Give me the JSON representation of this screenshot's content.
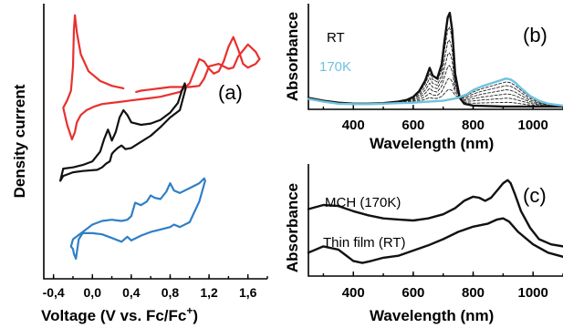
{
  "colors": {
    "red": "#e8312f",
    "black": "#111111",
    "blue": "#2f7fc6",
    "cyan": "#6fc3df"
  },
  "chart_data": [
    {
      "panel": "(a)",
      "type": "line",
      "xlabel": "Voltage (V vs. Fc/Fc",
      "xlabel_sup": "+",
      "ylabel": "Density current",
      "xlim": [
        -0.5,
        1.8
      ],
      "xticks": [
        "-0,4",
        "0,0",
        "0,4",
        "0,8",
        "1,2",
        "1,6"
      ],
      "xtick_values": [
        -0.4,
        0.0,
        0.4,
        0.8,
        1.2,
        1.6
      ],
      "y_units": "arbitrary",
      "series": [
        {
          "color": "red",
          "x": [
            0.32,
            0.2,
            0.08,
            -0.04,
            -0.12,
            -0.16,
            -0.18,
            -0.19,
            -0.2,
            -0.22,
            -0.26,
            -0.3,
            -0.26,
            -0.21,
            -0.18,
            -0.16,
            -0.12,
            -0.06,
            0.02,
            0.1,
            0.2,
            0.3,
            0.4,
            0.5,
            0.6,
            0.7,
            0.8,
            0.9,
            1.0,
            1.05,
            1.1,
            1.15,
            1.2,
            1.25,
            1.3,
            1.35,
            1.4,
            1.45,
            1.5,
            1.55,
            1.6,
            1.68,
            1.72,
            1.68,
            1.6,
            1.5,
            1.45,
            1.4,
            1.3,
            1.2,
            1.15,
            1.1,
            1.0,
            0.9,
            0.8,
            0.7,
            0.6,
            0.5,
            0.45
          ],
          "y": [
            10.2,
            10.4,
            10.8,
            11.6,
            13.0,
            14.8,
            16.2,
            15.0,
            12.0,
            10.0,
            9.2,
            8.6,
            7.2,
            6.0,
            6.6,
            7.4,
            8.0,
            8.4,
            8.7,
            8.9,
            9.0,
            9.1,
            9.2,
            9.3,
            9.4,
            9.5,
            9.7,
            9.9,
            10.6,
            11.6,
            12.6,
            12.4,
            11.8,
            11.4,
            11.6,
            12.4,
            13.6,
            14.4,
            13.4,
            12.2,
            11.9,
            12.2,
            12.6,
            13.2,
            13.8,
            12.8,
            11.9,
            11.8,
            12.2,
            12.0,
            11.0,
            10.4,
            10.3,
            10.3,
            10.3,
            10.2,
            10.1,
            10.0,
            9.9
          ]
        },
        {
          "color": "black",
          "x": [
            -0.3,
            -0.2,
            -0.1,
            0.0,
            0.08,
            0.12,
            0.16,
            0.18,
            0.2,
            0.24,
            0.28,
            0.32,
            0.36,
            0.4,
            0.5,
            0.6,
            0.7,
            0.8,
            0.88,
            0.92,
            0.95,
            0.96,
            0.9,
            0.8,
            0.7,
            0.6,
            0.5,
            0.4,
            0.34,
            0.3,
            0.26,
            0.22,
            0.2,
            0.18,
            0.14,
            0.1,
            0.05,
            -0.1,
            -0.2,
            -0.3,
            -0.33,
            -0.3
          ],
          "y": [
            3.6,
            3.7,
            3.9,
            4.2,
            5.0,
            6.0,
            6.8,
            6.4,
            5.9,
            6.6,
            7.8,
            8.4,
            8.0,
            7.4,
            7.2,
            7.3,
            7.6,
            8.2,
            9.0,
            10.0,
            10.6,
            10.2,
            8.4,
            7.8,
            7.0,
            6.3,
            5.8,
            5.3,
            5.2,
            5.5,
            5.3,
            5.0,
            4.8,
            4.2,
            4.0,
            3.7,
            3.5,
            3.4,
            3.3,
            3.0,
            2.6,
            3.6
          ]
        },
        {
          "color": "blue",
          "x": [
            -0.22,
            -0.2,
            -0.1,
            0.0,
            0.1,
            0.2,
            0.3,
            0.36,
            0.4,
            0.44,
            0.5,
            0.56,
            0.6,
            0.64,
            0.7,
            0.76,
            0.8,
            0.84,
            0.9,
            1.0,
            1.1,
            1.15,
            1.16,
            1.1,
            1.0,
            0.9,
            0.84,
            0.8,
            0.7,
            0.6,
            0.5,
            0.4,
            0.36,
            0.3,
            0.2,
            0.1,
            0.0,
            -0.1,
            -0.14,
            -0.17,
            -0.19,
            -0.2,
            -0.22
          ],
          "y": [
            -2.8,
            -2.2,
            -1.6,
            -1.0,
            -0.7,
            -0.6,
            -0.7,
            -0.6,
            -0.3,
            0.8,
            0.6,
            0.9,
            1.4,
            1.2,
            1.1,
            1.7,
            2.4,
            1.8,
            1.6,
            2.0,
            2.4,
            2.8,
            2.6,
            0.9,
            -0.8,
            -1.2,
            -1.0,
            -1.2,
            -1.4,
            -1.6,
            -1.9,
            -2.3,
            -2.0,
            -2.4,
            -2.1,
            -1.8,
            -1.7,
            -1.7,
            -2.2,
            -3.8,
            -3.4,
            -3.0,
            -2.8
          ]
        }
      ]
    },
    {
      "panel": "(b)",
      "type": "line",
      "xlabel": "Wavelength (nm)",
      "ylabel": "Absorbance",
      "xlim": [
        250,
        1100
      ],
      "xticks": [
        "400",
        "600",
        "800",
        "1000"
      ],
      "xtick_values": [
        400,
        600,
        800,
        1000
      ],
      "y_units": "arbitrary",
      "annotations": [
        "RT",
        "170K"
      ],
      "series": [
        {
          "label": "RT",
          "color": "black",
          "x": [
            250,
            300,
            350,
            400,
            450,
            500,
            550,
            580,
            600,
            620,
            640,
            655,
            665,
            680,
            695,
            705,
            715,
            722,
            730,
            740,
            755,
            770,
            800,
            850,
            900,
            950,
            1000,
            1050,
            1100
          ],
          "y": [
            0.1,
            0.07,
            0.05,
            0.04,
            0.04,
            0.045,
            0.06,
            0.08,
            0.11,
            0.17,
            0.28,
            0.41,
            0.33,
            0.3,
            0.45,
            0.7,
            0.93,
            0.98,
            0.8,
            0.35,
            0.1,
            0.04,
            0.02,
            0.015,
            0.01,
            0.01,
            0.01,
            0.01,
            0.01
          ]
        },
        {
          "label": "170K",
          "color": "cyan",
          "x": [
            250,
            300,
            350,
            400,
            450,
            500,
            550,
            600,
            650,
            700,
            750,
            780,
            800,
            830,
            860,
            890,
            910,
            925,
            940,
            960,
            990,
            1020,
            1050,
            1100
          ],
          "y": [
            0.09,
            0.06,
            0.04,
            0.035,
            0.035,
            0.04,
            0.045,
            0.05,
            0.06,
            0.07,
            0.1,
            0.14,
            0.18,
            0.22,
            0.25,
            0.28,
            0.3,
            0.29,
            0.26,
            0.2,
            0.12,
            0.07,
            0.04,
            0.02
          ]
        }
      ]
    },
    {
      "panel": "(c)",
      "type": "line",
      "xlabel": "Wavelength (nm)",
      "ylabel": "Absorbance",
      "xlim": [
        250,
        1100
      ],
      "xticks": [
        "400",
        "600",
        "800",
        "1000"
      ],
      "xtick_values": [
        400,
        600,
        800,
        1000
      ],
      "y_units": "arbitrary",
      "series": [
        {
          "label": "MCH (170K)",
          "color": "black",
          "x": [
            250,
            300,
            350,
            400,
            450,
            500,
            550,
            600,
            650,
            700,
            740,
            770,
            800,
            820,
            840,
            860,
            880,
            900,
            915,
            925,
            940,
            960,
            990,
            1020,
            1060,
            1100
          ],
          "y": [
            0.72,
            0.76,
            0.75,
            0.7,
            0.66,
            0.63,
            0.62,
            0.61,
            0.63,
            0.67,
            0.73,
            0.8,
            0.84,
            0.83,
            0.8,
            0.83,
            0.9,
            0.97,
            1.0,
            0.97,
            0.86,
            0.7,
            0.54,
            0.43,
            0.38,
            0.36
          ]
        },
        {
          "label": "Thin film (RT)",
          "color": "black",
          "x": [
            250,
            300,
            350,
            400,
            430,
            460,
            500,
            550,
            600,
            650,
            700,
            750,
            800,
            850,
            880,
            900,
            920,
            950,
            1000,
            1050,
            1100
          ],
          "y": [
            0.3,
            0.36,
            0.33,
            0.22,
            0.2,
            0.22,
            0.25,
            0.27,
            0.32,
            0.37,
            0.43,
            0.5,
            0.55,
            0.58,
            0.62,
            0.63,
            0.6,
            0.5,
            0.38,
            0.3,
            0.26
          ]
        }
      ]
    }
  ],
  "panel_b": {
    "label": "(b)",
    "ylabel": "Absorbance",
    "xlabel": "Wavelength (nm)",
    "annot_rt": "RT",
    "annot_170k": "170K"
  },
  "panel_a": {
    "label": "(a)",
    "ylabel": "Density current",
    "xlabel_main": "Voltage (V vs. Fc/Fc",
    "xlabel_sup": "+",
    "xlabel_close": ")"
  },
  "panel_c": {
    "label": "(c)",
    "ylabel": "Absorbance",
    "xlabel": "Wavelength (nm)",
    "annot_mch": "MCH (170K)",
    "annot_film": "Thin film (RT)"
  }
}
